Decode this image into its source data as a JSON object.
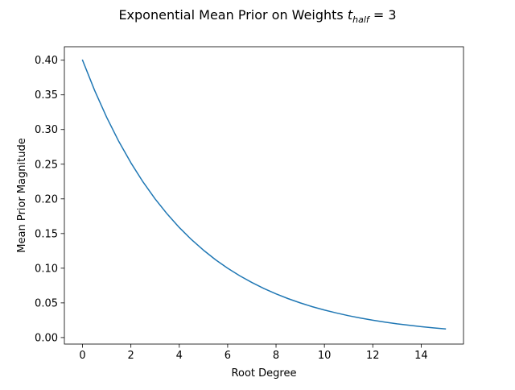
{
  "chart_data": {
    "type": "line",
    "title_main": "Exponential Mean Prior on Weights ",
    "title_var": "t",
    "title_sub": "half",
    "title_tail": " = 3",
    "xlabel": "Root Degree",
    "ylabel": "Mean Prior Magnitude",
    "xlim": [
      -0.75,
      15.75
    ],
    "ylim": [
      -0.0094,
      0.4194
    ],
    "x_ticks": [
      0,
      2,
      4,
      6,
      8,
      10,
      12,
      14
    ],
    "x_tick_labels": [
      "0",
      "2",
      "4",
      "6",
      "8",
      "10",
      "12",
      "14"
    ],
    "y_ticks": [
      0.0,
      0.05,
      0.1,
      0.15,
      0.2,
      0.25,
      0.3,
      0.35,
      0.4
    ],
    "y_tick_labels": [
      "0.00",
      "0.05",
      "0.10",
      "0.15",
      "0.20",
      "0.25",
      "0.30",
      "0.35",
      "0.40"
    ],
    "grid": false,
    "series": [
      {
        "color": "#1f77b4",
        "x": [
          0,
          0.5,
          1,
          1.5,
          2,
          2.5,
          3,
          3.5,
          4,
          4.5,
          5,
          5.5,
          6,
          6.5,
          7,
          7.5,
          8,
          8.5,
          9,
          9.5,
          10,
          10.5,
          11,
          11.5,
          12,
          12.5,
          13,
          13.5,
          14,
          14.5,
          15
        ],
        "y": [
          0.4,
          0.3564,
          0.3175,
          0.2828,
          0.252,
          0.2245,
          0.2,
          0.1782,
          0.1587,
          0.1414,
          0.126,
          0.1122,
          0.1,
          0.0891,
          0.0794,
          0.0707,
          0.063,
          0.0561,
          0.05,
          0.0445,
          0.0397,
          0.0354,
          0.0315,
          0.0281,
          0.025,
          0.0223,
          0.0198,
          0.0177,
          0.0157,
          0.014,
          0.0125
        ]
      }
    ]
  }
}
